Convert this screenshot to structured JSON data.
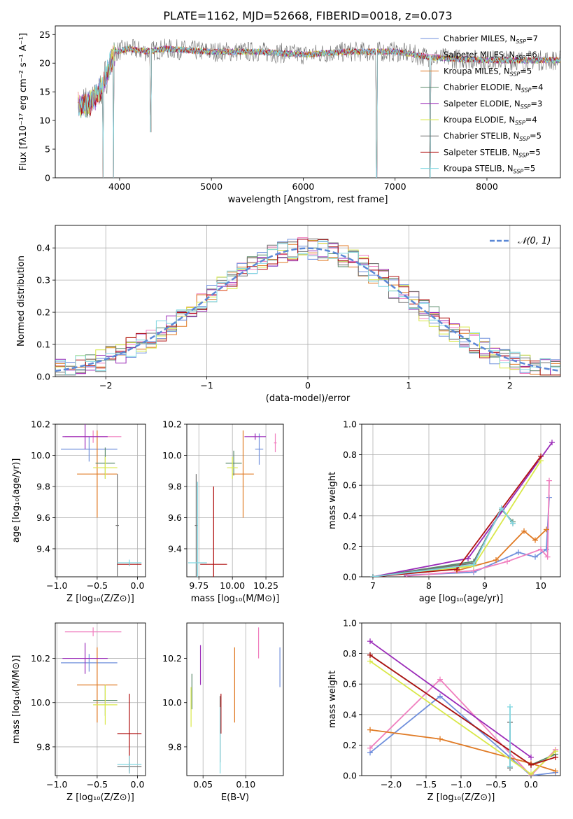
{
  "figure": {
    "title": "PLATE=1162, MJD=52668, FIBERID=0018, z=0.073"
  },
  "colors": {
    "series": [
      "#6f8fdc",
      "#f07fbf",
      "#e07a24",
      "#5a8a6a",
      "#9a2ab8",
      "#d9e84a",
      "#707070",
      "#b01010",
      "#7fd6e0"
    ],
    "grid": "#b0b0b0",
    "gaussian": "#5b88d6"
  },
  "chart_data": [
    {
      "id": "spectrum",
      "type": "line",
      "xlabel": "wavelength [Angstrom, rest frame]",
      "ylabel": "Flux [fλ10⁻¹⁷ erg cm⁻² s⁻¹ A⁻¹]",
      "xlim": [
        3300,
        8800
      ],
      "ylim": [
        0,
        26.5
      ],
      "xticks": [
        4000,
        5000,
        6000,
        7000,
        8000
      ],
      "yticks": [
        0,
        5,
        10,
        15,
        20,
        25
      ],
      "legend_position": "right",
      "legend": [
        "Chabrier MILES, N_SSP=7",
        "Salpeter MILES, N_SSP=6",
        "Kroupa MILES, N_SSP=5",
        "Chabrier ELODIE, N_SSP=4",
        "Salpeter ELODIE, N_SSP=3",
        "Kroupa ELODIE, N_SSP=4",
        "Chabrier STELIB, N_SSP=5",
        "Salpeter STELIB, N_SSP=5",
        "Kroupa STELIB, N_SSP=5"
      ],
      "continuum": [
        [
          3550,
          13
        ],
        [
          3650,
          12.5
        ],
        [
          3800,
          15.5
        ],
        [
          3950,
          22
        ],
        [
          4100,
          22.5
        ],
        [
          4300,
          22
        ],
        [
          4500,
          22.5
        ],
        [
          5000,
          22
        ],
        [
          5500,
          22
        ],
        [
          6000,
          21.5
        ],
        [
          6500,
          22
        ],
        [
          7000,
          22
        ],
        [
          7400,
          21
        ],
        [
          8000,
          20.5
        ],
        [
          8500,
          20.5
        ],
        [
          8800,
          20.5
        ]
      ],
      "absorption_dips": [
        [
          3820,
          0
        ],
        [
          3933,
          0
        ],
        [
          4340,
          8
        ],
        [
          6800,
          0
        ],
        [
          7380,
          0
        ]
      ]
    },
    {
      "id": "residuals",
      "type": "line",
      "xlabel": "(data-model)/error",
      "ylabel": "Normed distribution",
      "xlim": [
        -2.5,
        2.5
      ],
      "ylim": [
        0,
        0.47
      ],
      "xticks": [
        -2,
        -1,
        0,
        1,
        2
      ],
      "yticks": [
        0.0,
        0.1,
        0.2,
        0.3,
        0.4
      ],
      "legend": [
        "𝒩(0, 1)"
      ],
      "legend_position": "top-right",
      "gaussian_peak": 0.399
    },
    {
      "id": "age_vs_Z",
      "type": "scatter",
      "xlabel": "Z [log₁₀(Z/Z⊙)]",
      "ylabel": "age  [log₁₀(age/yr)]",
      "xlim": [
        -1.02,
        0.1
      ],
      "ylim": [
        9.22,
        10.2
      ],
      "xticks": [
        -1.0,
        -0.5,
        0.0
      ],
      "yticks": [
        9.4,
        9.6,
        9.8,
        10.0,
        10.2
      ],
      "points": [
        {
          "series": 0,
          "x": -0.6,
          "y": 10.04,
          "xerr": 0.35,
          "yerr": 0.08
        },
        {
          "series": 1,
          "x": -0.55,
          "y": 10.12,
          "xerr": 0.35,
          "yerr": 0.04
        },
        {
          "series": 2,
          "x": -0.5,
          "y": 9.88,
          "xerr": 0.25,
          "yerr": 0.28
        },
        {
          "series": 3,
          "x": -0.4,
          "y": 9.95,
          "xerr": 0.12,
          "yerr": 0.1
        },
        {
          "series": 4,
          "x": -0.65,
          "y": 10.12,
          "xerr": 0.28,
          "yerr": 0.08
        },
        {
          "series": 5,
          "x": -0.4,
          "y": 9.92,
          "xerr": 0.15,
          "yerr": 0.07
        },
        {
          "series": 6,
          "x": -0.25,
          "y": 9.55,
          "xerr": 0.02,
          "yerr": 0.33
        },
        {
          "series": 7,
          "x": -0.1,
          "y": 9.3,
          "xerr": 0.15,
          "yerr": 0.01
        },
        {
          "series": 8,
          "x": -0.1,
          "y": 9.31,
          "xerr": 0.15,
          "yerr": 0.02
        }
      ]
    },
    {
      "id": "age_vs_mass",
      "type": "scatter",
      "xlabel": "mass [log₁₀(M/M⊙)]",
      "ylabel": "",
      "xlim": [
        9.66,
        10.38
      ],
      "ylim": [
        9.22,
        10.2
      ],
      "xticks": [
        9.75,
        10.0,
        10.25
      ],
      "yticks": [
        9.4,
        9.6,
        9.8,
        10.0,
        10.2
      ],
      "points": [
        {
          "series": 0,
          "x": 10.2,
          "y": 10.04,
          "xerr": 0.03,
          "yerr": 0.1
        },
        {
          "series": 1,
          "x": 10.32,
          "y": 10.08,
          "xerr": 0.01,
          "yerr": 0.06
        },
        {
          "series": 2,
          "x": 10.08,
          "y": 9.88,
          "xerr": 0.08,
          "yerr": 0.28
        },
        {
          "series": 3,
          "x": 10.01,
          "y": 9.95,
          "xerr": 0.06,
          "yerr": 0.08
        },
        {
          "series": 4,
          "x": 10.17,
          "y": 10.12,
          "xerr": 0.08,
          "yerr": 0.02
        },
        {
          "series": 5,
          "x": 10.0,
          "y": 9.92,
          "xerr": 0.04,
          "yerr": 0.07
        },
        {
          "series": 6,
          "x": 9.73,
          "y": 9.55,
          "xerr": 0.01,
          "yerr": 0.33
        },
        {
          "series": 7,
          "x": 9.86,
          "y": 9.3,
          "xerr": 0.1,
          "yerr": 0.5
        },
        {
          "series": 8,
          "x": 9.74,
          "y": 9.31,
          "xerr": 0.07,
          "yerr": 0.52
        }
      ]
    },
    {
      "id": "massweight_vs_age",
      "type": "line",
      "xlabel": "age  [log₁₀(age/yr)]",
      "ylabel": "mass weight",
      "xlim": [
        6.8,
        10.35
      ],
      "ylim": [
        0,
        1.0
      ],
      "xticks": [
        7,
        8,
        9,
        10
      ],
      "yticks": [
        0.0,
        0.2,
        0.4,
        0.6,
        0.8,
        1.0
      ],
      "series": [
        {
          "color_index": 0,
          "x": [
            7.6,
            8.8,
            9.6,
            9.9,
            10.1,
            10.15
          ],
          "y": [
            0.01,
            0.03,
            0.16,
            0.13,
            0.18,
            0.52
          ]
        },
        {
          "color_index": 1,
          "x": [
            7.6,
            8.8,
            9.4,
            10.0,
            10.12,
            10.15
          ],
          "y": [
            0.005,
            0.04,
            0.1,
            0.18,
            0.13,
            0.63
          ]
        },
        {
          "color_index": 2,
          "x": [
            8.5,
            9.2,
            9.7,
            9.9,
            10.1
          ],
          "y": [
            0.04,
            0.11,
            0.3,
            0.24,
            0.31
          ]
        },
        {
          "color_index": 3,
          "x": [
            7.0,
            8.8,
            9.3,
            9.5
          ],
          "y": [
            0.0,
            0.1,
            0.44,
            0.36
          ]
        },
        {
          "color_index": 4,
          "x": [
            7.0,
            8.7,
            10.2
          ],
          "y": [
            0.0,
            0.12,
            0.88
          ]
        },
        {
          "color_index": 5,
          "x": [
            7.0,
            8.8,
            10.0
          ],
          "y": [
            0.0,
            0.07,
            0.76
          ]
        },
        {
          "color_index": 6,
          "x": [
            7.0,
            8.8,
            9.3,
            9.5
          ],
          "y": [
            0.0,
            0.09,
            0.45,
            0.35
          ]
        },
        {
          "color_index": 7,
          "x": [
            7.0,
            8.5,
            10.0
          ],
          "y": [
            0.0,
            0.05,
            0.79
          ]
        },
        {
          "color_index": 8,
          "x": [
            7.0,
            8.8,
            9.3,
            9.5
          ],
          "y": [
            0.0,
            0.08,
            0.45,
            0.35
          ]
        }
      ]
    },
    {
      "id": "mass_vs_Z",
      "type": "scatter",
      "xlabel": "Z [log₁₀(Z/Z⊙)]",
      "ylabel": "mass [log₁₀(M/M⊙)]",
      "xlim": [
        -1.02,
        0.1
      ],
      "ylim": [
        9.67,
        10.36
      ],
      "xticks": [
        -1.0,
        -0.5,
        0.0
      ],
      "yticks": [
        9.8,
        10.0,
        10.2
      ],
      "points": [
        {
          "series": 0,
          "x": -0.6,
          "y": 10.18,
          "xerr": 0.35,
          "yerr": 0.04
        },
        {
          "series": 1,
          "x": -0.55,
          "y": 10.32,
          "xerr": 0.35,
          "yerr": 0.02
        },
        {
          "series": 2,
          "x": -0.5,
          "y": 10.08,
          "xerr": 0.25,
          "yerr": 0.17
        },
        {
          "series": 3,
          "x": -0.4,
          "y": 10.01,
          "xerr": 0.15,
          "yerr": 0.07
        },
        {
          "series": 4,
          "x": -0.65,
          "y": 10.2,
          "xerr": 0.28,
          "yerr": 0.07
        },
        {
          "series": 5,
          "x": -0.4,
          "y": 9.99,
          "xerr": 0.15,
          "yerr": 0.09
        },
        {
          "series": 6,
          "x": -0.1,
          "y": 9.71,
          "xerr": 0.15,
          "yerr": 0.02
        },
        {
          "series": 7,
          "x": -0.1,
          "y": 9.86,
          "xerr": 0.15,
          "yerr": 0.18
        },
        {
          "series": 8,
          "x": -0.1,
          "y": 9.72,
          "xerr": 0.15,
          "yerr": 0.04
        }
      ]
    },
    {
      "id": "mass_vs_EBV",
      "type": "scatter",
      "xlabel": "E(B-V)",
      "ylabel": "",
      "xlim": [
        0.031,
        0.144
      ],
      "ylim": [
        9.67,
        10.36
      ],
      "xticks": [
        0.05,
        0.1
      ],
      "points": [
        {
          "series": 0,
          "x": 0.14,
          "y": 10.16,
          "yerr": 0.09
        },
        {
          "series": 1,
          "x": 0.115,
          "y": 10.27,
          "yerr": 0.07
        },
        {
          "series": 2,
          "x": 0.087,
          "y": 10.08,
          "yerr": 0.17
        },
        {
          "series": 3,
          "x": 0.037,
          "y": 10.05,
          "yerr": 0.08
        },
        {
          "series": 4,
          "x": 0.047,
          "y": 10.17,
          "yerr": 0.09
        },
        {
          "series": 5,
          "x": 0.036,
          "y": 9.98,
          "yerr": 0.09
        },
        {
          "series": 6,
          "x": 0.07,
          "y": 9.88,
          "yerr": 0.15
        },
        {
          "series": 7,
          "x": 0.071,
          "y": 9.95,
          "yerr": 0.09
        },
        {
          "series": 8,
          "x": 0.07,
          "y": 9.83,
          "yerr": 0.15
        }
      ]
    },
    {
      "id": "massweight_vs_Z",
      "type": "line",
      "xlabel": "Z [log₁₀(Z/Z⊙)]",
      "ylabel": "mass weight",
      "xlim": [
        -2.42,
        0.42
      ],
      "ylim": [
        0,
        1.0
      ],
      "xticks": [
        -2.0,
        -1.5,
        -1.0,
        -0.5,
        0.0
      ],
      "yticks": [
        0.0,
        0.2,
        0.4,
        0.6,
        0.8,
        1.0
      ],
      "series": [
        {
          "color_index": 0,
          "x": [
            -2.3,
            -1.3,
            0.0,
            0.35
          ],
          "y": [
            0.15,
            0.52,
            0.0,
            0.02
          ]
        },
        {
          "color_index": 1,
          "x": [
            -2.3,
            -1.3,
            0.0,
            0.35
          ],
          "y": [
            0.18,
            0.63,
            0.0,
            0.17
          ]
        },
        {
          "color_index": 2,
          "x": [
            -2.3,
            -1.3,
            0.0,
            0.35
          ],
          "y": [
            0.3,
            0.24,
            0.08,
            0.03
          ]
        },
        {
          "color_index": 3,
          "x": [
            -2.3,
            0.0,
            0.35
          ],
          "y": [
            0.79,
            0.07,
            0.14
          ]
        },
        {
          "color_index": 4,
          "x": [
            -2.3,
            0.0
          ],
          "y": [
            0.88,
            0.12
          ]
        },
        {
          "color_index": 5,
          "x": [
            -2.3,
            0.0,
            0.35
          ],
          "y": [
            0.75,
            0.01,
            0.16
          ]
        },
        {
          "color_index": 6,
          "x": [
            -0.3,
            -0.3
          ],
          "y": [
            0.35,
            0.05
          ]
        },
        {
          "color_index": 7,
          "x": [
            -2.3,
            0.0,
            0.35
          ],
          "y": [
            0.79,
            0.07,
            0.12
          ]
        },
        {
          "color_index": 8,
          "x": [
            -0.3,
            -0.3
          ],
          "y": [
            0.45,
            0.06
          ]
        }
      ]
    }
  ]
}
